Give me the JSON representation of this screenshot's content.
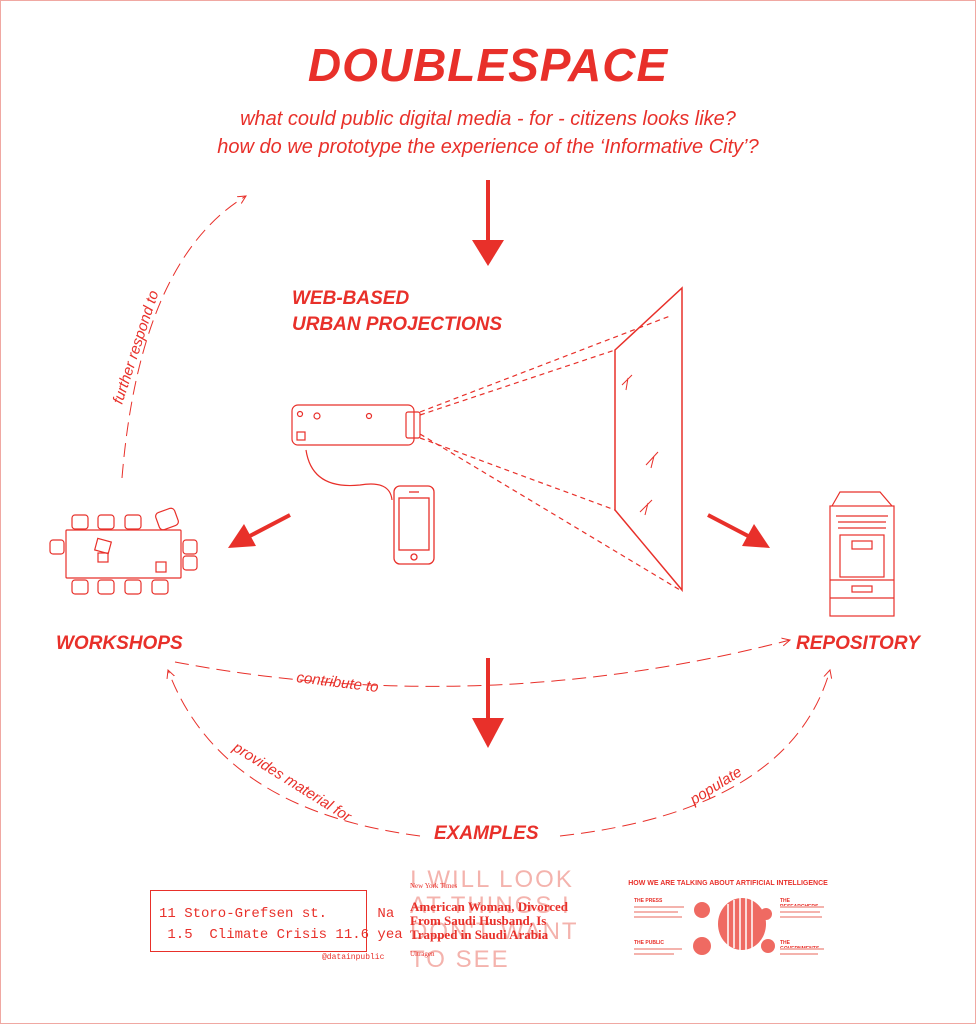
{
  "title": "DOUBLESPACE",
  "subtitle_line1": "what could public digital media - for - citizens looks like?",
  "subtitle_line2": "how do we prototype the experience of the ‘Informative City’?",
  "center_label_line1": "WEB-BASED",
  "center_label_line2": "URBAN PROJECTIONS",
  "left_label": "WORKSHOPS",
  "right_label": "REPOSITORY",
  "bottom_label": "EXAMPLES",
  "captions": {
    "further_respond_to": "further respond to",
    "contribute_to": "contribute to",
    "provides_material_for": "provides material for",
    "populate": "populate"
  },
  "examples": {
    "display_row1": "11 Storo-Grefsen st.      Na",
    "display_row2": " 1.5  Climate Crisis 11.6 yea",
    "display_handle": "@datainpublic",
    "poster_big_line1": "I WILL LOOK",
    "poster_big_line2": "AT THINGS I",
    "poster_big_line3": "DON'T WANT",
    "poster_big_line4": "TO SEE",
    "poster_source": "New York Times",
    "poster_headline": "American Woman, Divorced From Saudi Husband, Is Trapped in Saudi Arabia",
    "poster_footer": "Ultragen",
    "ai_title": "HOW WE ARE TALKING ABOUT ARTIFICIAL INTELLIGENCE",
    "ai_sec1": "THE PRESS",
    "ai_sec2": "THE RESEARCHERS",
    "ai_sec3": "THE PUBLIC",
    "ai_sec4": "THE GOVERNMENTS"
  },
  "colors": {
    "accent": "#e8302a",
    "accent_light": "#f4b3ad"
  }
}
